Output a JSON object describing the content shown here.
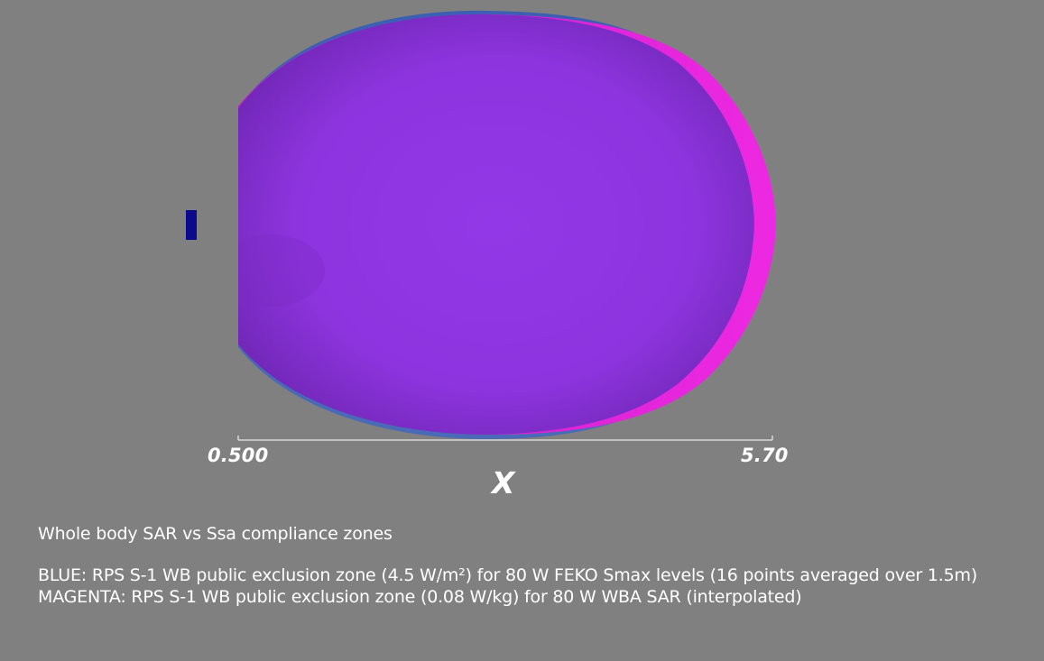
{
  "axis": {
    "name": "X",
    "min_label": "0.500",
    "max_label": "5.70"
  },
  "caption": {
    "title": "Whole body SAR vs Ssa compliance zones",
    "blue_zone": "BLUE: RPS S-1 WB public exclusion zone (4.5 W/m²) for 80 W FEKO Smax levels (16 points averaged over 1.5m)",
    "magenta_zone": "MAGENTA: RPS S-1 WB public exclusion zone (0.08 W/kg) for 80 W WBA SAR (interpolated)"
  },
  "colors": {
    "background": "#808080",
    "blue_zone": "#3f63b5",
    "magenta_zone": "#e41fd8",
    "overlap": "#8c35e0",
    "antenna": "#0a0a8a"
  }
}
